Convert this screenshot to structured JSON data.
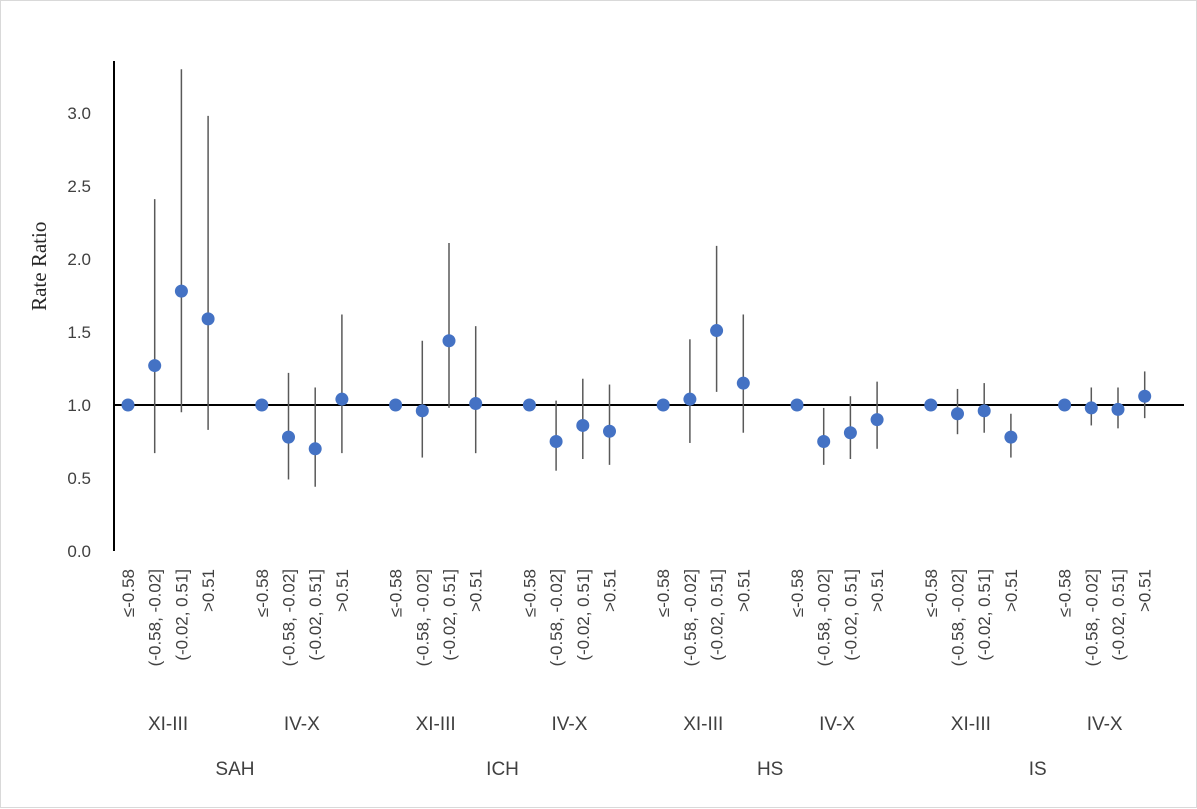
{
  "chart_data": {
    "type": "scatter",
    "title": "",
    "ylabel": "Rate Ratio",
    "ylim": [
      0,
      3.5
    ],
    "yticks": [
      "0.0",
      "0.5",
      "1.0",
      "1.5",
      "2.0",
      "2.5",
      "3.0"
    ],
    "reference_line": 1.0,
    "grid": false,
    "legend": "none",
    "point_color": "#4472c4",
    "bin_labels": [
      "≤-0.58",
      "(-0.58, -0.02]",
      "(-0.02, 0.51]",
      ">0.51"
    ],
    "season_labels": [
      "XI-III",
      "IV-X"
    ],
    "outcomes": [
      {
        "name": "SAH",
        "seasons": [
          {
            "name": "XI-III",
            "points": [
              {
                "bin": "≤-0.58",
                "rr": 1.0,
                "lo": 1.0,
                "hi": 1.0
              },
              {
                "bin": "(-0.58, -0.02]",
                "rr": 1.27,
                "lo": 0.67,
                "hi": 2.41
              },
              {
                "bin": "(-0.02, 0.51]",
                "rr": 1.78,
                "lo": 0.95,
                "hi": 3.3
              },
              {
                "bin": ">0.51",
                "rr": 1.59,
                "lo": 0.83,
                "hi": 2.98
              }
            ]
          },
          {
            "name": "IV-X",
            "points": [
              {
                "bin": "≤-0.58",
                "rr": 1.0,
                "lo": 1.0,
                "hi": 1.0
              },
              {
                "bin": "(-0.58, -0.02]",
                "rr": 0.78,
                "lo": 0.49,
                "hi": 1.22
              },
              {
                "bin": "(-0.02, 0.51]",
                "rr": 0.7,
                "lo": 0.44,
                "hi": 1.12
              },
              {
                "bin": ">0.51",
                "rr": 1.04,
                "lo": 0.67,
                "hi": 1.62
              }
            ]
          }
        ]
      },
      {
        "name": "ICH",
        "seasons": [
          {
            "name": "XI-III",
            "points": [
              {
                "bin": "≤-0.58",
                "rr": 1.0,
                "lo": 1.0,
                "hi": 1.0
              },
              {
                "bin": "(-0.58, -0.02]",
                "rr": 0.96,
                "lo": 0.64,
                "hi": 1.44
              },
              {
                "bin": "(-0.02, 0.51]",
                "rr": 1.44,
                "lo": 0.98,
                "hi": 2.11
              },
              {
                "bin": ">0.51",
                "rr": 1.01,
                "lo": 0.67,
                "hi": 1.54
              }
            ]
          },
          {
            "name": "IV-X",
            "points": [
              {
                "bin": "≤-0.58",
                "rr": 1.0,
                "lo": 1.0,
                "hi": 1.0
              },
              {
                "bin": "(-0.58, -0.02]",
                "rr": 0.75,
                "lo": 0.55,
                "hi": 1.03
              },
              {
                "bin": "(-0.02, 0.51]",
                "rr": 0.86,
                "lo": 0.63,
                "hi": 1.18
              },
              {
                "bin": ">0.51",
                "rr": 0.82,
                "lo": 0.59,
                "hi": 1.14
              }
            ]
          }
        ]
      },
      {
        "name": "HS",
        "seasons": [
          {
            "name": "XI-III",
            "points": [
              {
                "bin": "≤-0.58",
                "rr": 1.0,
                "lo": 1.0,
                "hi": 1.0
              },
              {
                "bin": "(-0.58, -0.02]",
                "rr": 1.04,
                "lo": 0.74,
                "hi": 1.45
              },
              {
                "bin": "(-0.02, 0.51]",
                "rr": 1.51,
                "lo": 1.09,
                "hi": 2.09
              },
              {
                "bin": ">0.51",
                "rr": 1.15,
                "lo": 0.81,
                "hi": 1.62
              }
            ]
          },
          {
            "name": "IV-X",
            "points": [
              {
                "bin": "≤-0.58",
                "rr": 1.0,
                "lo": 1.0,
                "hi": 1.0
              },
              {
                "bin": "(-0.58, -0.02]",
                "rr": 0.75,
                "lo": 0.59,
                "hi": 0.98
              },
              {
                "bin": "(-0.02, 0.51]",
                "rr": 0.81,
                "lo": 0.63,
                "hi": 1.06
              },
              {
                "bin": ">0.51",
                "rr": 0.9,
                "lo": 0.7,
                "hi": 1.16
              }
            ]
          }
        ]
      },
      {
        "name": "IS",
        "seasons": [
          {
            "name": "XI-III",
            "points": [
              {
                "bin": "≤-0.58",
                "rr": 1.0,
                "lo": 1.0,
                "hi": 1.0
              },
              {
                "bin": "(-0.58, -0.02]",
                "rr": 0.94,
                "lo": 0.8,
                "hi": 1.11
              },
              {
                "bin": "(-0.02, 0.51]",
                "rr": 0.96,
                "lo": 0.81,
                "hi": 1.15
              },
              {
                "bin": ">0.51",
                "rr": 0.78,
                "lo": 0.64,
                "hi": 0.94
              }
            ]
          },
          {
            "name": "IV-X",
            "points": [
              {
                "bin": "≤-0.58",
                "rr": 1.0,
                "lo": 1.0,
                "hi": 1.0
              },
              {
                "bin": "(-0.58, -0.02]",
                "rr": 0.98,
                "lo": 0.86,
                "hi": 1.12
              },
              {
                "bin": "(-0.02, 0.51]",
                "rr": 0.97,
                "lo": 0.84,
                "hi": 1.12
              },
              {
                "bin": ">0.51",
                "rr": 1.06,
                "lo": 0.91,
                "hi": 1.23
              }
            ]
          }
        ]
      }
    ]
  }
}
